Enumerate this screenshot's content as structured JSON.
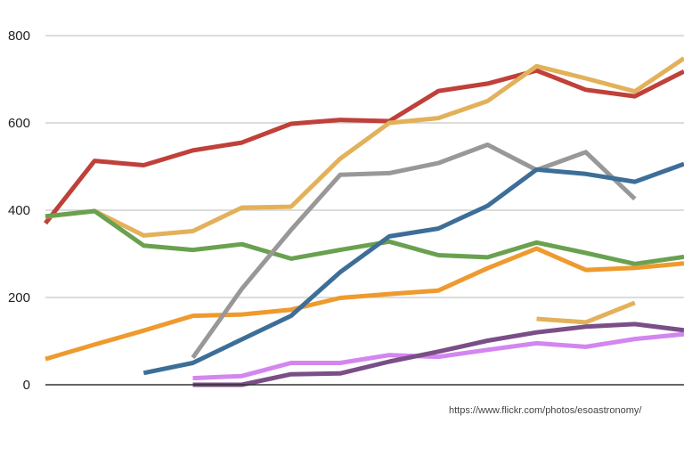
{
  "chart_data": {
    "type": "line",
    "title": "",
    "xlabel": "",
    "ylabel": "",
    "ylim": [
      0,
      800
    ],
    "xlim": [
      0,
      13
    ],
    "yticks": [
      "0",
      "200",
      "400",
      "600",
      "800"
    ],
    "grid": true,
    "legend": "none",
    "credit": "https://www.flickr.com/photos/esoastronomy/",
    "colors": {
      "red": "#c0403a",
      "light_orange": "#e2b15a",
      "green": "#6aa150",
      "orange": "#ee9a2e",
      "gray": "#989898",
      "blue": "#3d6e98",
      "violet": "#d386ef",
      "purple": "#7a4e86",
      "grid": "#c8c8c8",
      "axis": "#333333"
    },
    "series": [
      {
        "color": "red",
        "points": [
          [
            0,
            370
          ],
          [
            1,
            513
          ],
          [
            2,
            503
          ],
          [
            3,
            537
          ],
          [
            4,
            555
          ],
          [
            5,
            598
          ],
          [
            6,
            607
          ],
          [
            7,
            604
          ],
          [
            8,
            673
          ],
          [
            9,
            690
          ],
          [
            10,
            720
          ],
          [
            11,
            676
          ],
          [
            12,
            661
          ],
          [
            13,
            718
          ]
        ]
      },
      {
        "color": "light_orange",
        "points": [
          [
            0,
            385
          ],
          [
            1,
            398
          ],
          [
            2,
            342
          ],
          [
            3,
            352
          ],
          [
            4,
            406
          ],
          [
            5,
            408
          ],
          [
            6,
            518
          ],
          [
            7,
            600
          ],
          [
            8,
            611
          ],
          [
            9,
            650
          ],
          [
            10,
            730
          ],
          [
            11,
            702
          ],
          [
            12,
            672
          ],
          [
            13,
            748
          ]
        ]
      },
      {
        "color": "green",
        "points": [
          [
            0,
            386
          ],
          [
            1,
            398
          ],
          [
            2,
            319
          ],
          [
            3,
            309
          ],
          [
            4,
            322
          ],
          [
            5,
            289
          ],
          [
            6,
            309
          ],
          [
            7,
            328
          ],
          [
            8,
            297
          ],
          [
            9,
            292
          ],
          [
            10,
            326
          ],
          [
            11,
            302
          ],
          [
            12,
            277
          ],
          [
            13,
            293
          ]
        ]
      },
      {
        "color": "orange",
        "points": [
          [
            0,
            59
          ],
          [
            1,
            92
          ],
          [
            2,
            124
          ],
          [
            3,
            158
          ],
          [
            4,
            161
          ],
          [
            5,
            172
          ],
          [
            6,
            199
          ],
          [
            7,
            208
          ],
          [
            8,
            216
          ],
          [
            9,
            267
          ],
          [
            10,
            312
          ],
          [
            11,
            263
          ],
          [
            12,
            268
          ],
          [
            13,
            278
          ]
        ]
      },
      {
        "color": "gray",
        "points": [
          [
            3,
            62
          ],
          [
            4,
            220
          ],
          [
            5,
            355
          ],
          [
            6,
            481
          ],
          [
            7,
            485
          ],
          [
            8,
            508
          ],
          [
            9,
            550
          ],
          [
            10,
            492
          ],
          [
            11,
            533
          ],
          [
            12,
            426
          ]
        ]
      },
      {
        "color": "blue",
        "points": [
          [
            2,
            27
          ],
          [
            3,
            50
          ],
          [
            4,
            104
          ],
          [
            5,
            158
          ],
          [
            6,
            258
          ],
          [
            7,
            340
          ],
          [
            8,
            358
          ],
          [
            9,
            410
          ],
          [
            10,
            493
          ],
          [
            11,
            483
          ],
          [
            12,
            465
          ],
          [
            13,
            506
          ]
        ]
      },
      {
        "color": "light_orange",
        "points": [
          [
            10,
            151
          ],
          [
            11,
            143
          ],
          [
            12,
            188
          ]
        ]
      },
      {
        "color": "violet",
        "points": [
          [
            3,
            15
          ],
          [
            4,
            20
          ],
          [
            5,
            50
          ],
          [
            6,
            50
          ],
          [
            7,
            68
          ],
          [
            8,
            64
          ],
          [
            9,
            80
          ],
          [
            10,
            95
          ],
          [
            11,
            87
          ],
          [
            12,
            105
          ],
          [
            13,
            116
          ]
        ]
      },
      {
        "color": "purple",
        "points": [
          [
            3,
            0
          ],
          [
            4,
            0
          ],
          [
            5,
            24
          ],
          [
            6,
            26
          ],
          [
            7,
            53
          ],
          [
            8,
            76
          ],
          [
            9,
            101
          ],
          [
            10,
            120
          ],
          [
            11,
            133
          ],
          [
            12,
            139
          ],
          [
            13,
            125
          ]
        ]
      }
    ]
  }
}
